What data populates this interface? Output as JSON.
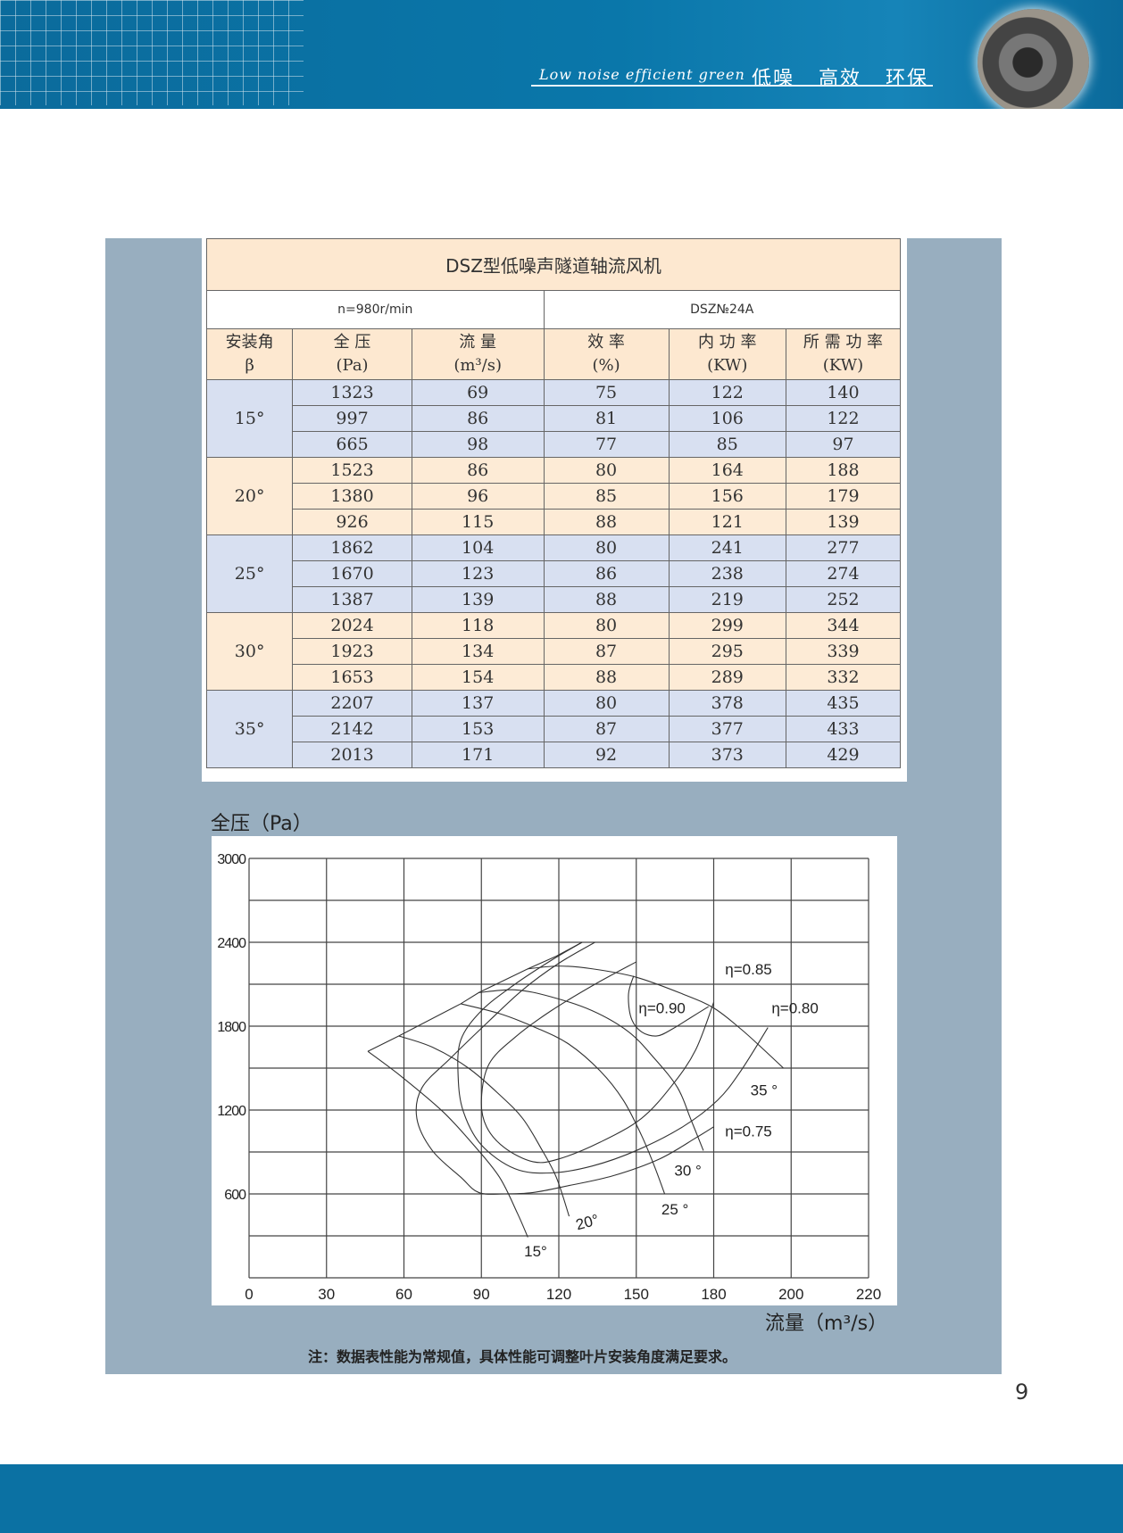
{
  "header": {
    "slogan_en": "Low noise efficient green",
    "slogan_cn": "低噪 高效 环保",
    "brand_color": "#0b71a3"
  },
  "table": {
    "title": "DSZ型低噪声隧道轴流风机",
    "speed": "n=980r/min",
    "model": "DSZ№24A",
    "headers": [
      {
        "label": "安装角",
        "unit": "β"
      },
      {
        "label": "全 压",
        "unit": "(Pa)"
      },
      {
        "label": "流 量",
        "unit": "(m³/s)"
      },
      {
        "label": "效 率",
        "unit": "(%)"
      },
      {
        "label": "内 功 率",
        "unit": "(KW)"
      },
      {
        "label": "所 需 功 率",
        "unit": "(KW)"
      }
    ],
    "groups": [
      {
        "angle": "15°",
        "rows": [
          [
            "1323",
            "69",
            "75",
            "122",
            "140"
          ],
          [
            "997",
            "86",
            "81",
            "106",
            "122"
          ],
          [
            "665",
            "98",
            "77",
            "85",
            "97"
          ]
        ]
      },
      {
        "angle": "20°",
        "rows": [
          [
            "1523",
            "86",
            "80",
            "164",
            "188"
          ],
          [
            "1380",
            "96",
            "85",
            "156",
            "179"
          ],
          [
            "926",
            "115",
            "88",
            "121",
            "139"
          ]
        ]
      },
      {
        "angle": "25°",
        "rows": [
          [
            "1862",
            "104",
            "80",
            "241",
            "277"
          ],
          [
            "1670",
            "123",
            "86",
            "238",
            "274"
          ],
          [
            "1387",
            "139",
            "88",
            "219",
            "252"
          ]
        ]
      },
      {
        "angle": "30°",
        "rows": [
          [
            "2024",
            "118",
            "80",
            "299",
            "344"
          ],
          [
            "1923",
            "134",
            "87",
            "295",
            "339"
          ],
          [
            "1653",
            "154",
            "88",
            "289",
            "332"
          ]
        ]
      },
      {
        "angle": "35°",
        "rows": [
          [
            "2207",
            "137",
            "80",
            "378",
            "435"
          ],
          [
            "2142",
            "153",
            "87",
            "377",
            "433"
          ],
          [
            "2013",
            "171",
            "92",
            "373",
            "429"
          ]
        ]
      }
    ]
  },
  "chart_data": {
    "type": "line",
    "ylabel": "全压（Pa）",
    "xlabel": "流量（m³/s）",
    "x_ticks": [
      0,
      30,
      60,
      90,
      120,
      150,
      180,
      200,
      220
    ],
    "y_ticks": [
      0,
      600,
      1200,
      1800,
      2400,
      3000
    ],
    "y_grid_step": 300,
    "ylim": [
      0,
      3000
    ],
    "grid": true,
    "series": [
      {
        "name": "15°",
        "points": [
          [
            46,
            1620
          ],
          [
            59,
            1440
          ],
          [
            75,
            1190
          ],
          [
            87,
            950
          ],
          [
            97,
            720
          ],
          [
            104,
            460
          ],
          [
            108,
            290
          ]
        ]
      },
      {
        "name": "20°",
        "points": [
          [
            58,
            1730
          ],
          [
            71,
            1650
          ],
          [
            85,
            1500
          ],
          [
            97,
            1310
          ],
          [
            106,
            1140
          ],
          [
            113,
            930
          ],
          [
            119,
            720
          ],
          [
            124,
            440
          ]
        ]
      },
      {
        "name": "25°",
        "points": [
          [
            82,
            1960
          ],
          [
            97,
            1890
          ],
          [
            111,
            1790
          ],
          [
            124,
            1670
          ],
          [
            136,
            1480
          ],
          [
            145,
            1270
          ],
          [
            152,
            1020
          ],
          [
            157,
            800
          ],
          [
            161,
            600
          ]
        ]
      },
      {
        "name": "30°",
        "points": [
          [
            89,
            2040
          ],
          [
            103,
            2060
          ],
          [
            117,
            2010
          ],
          [
            133,
            1910
          ],
          [
            147,
            1760
          ],
          [
            157,
            1570
          ],
          [
            166,
            1360
          ],
          [
            171,
            1140
          ],
          [
            176,
            910
          ]
        ]
      },
      {
        "name": "35°",
        "points": [
          [
            108,
            2210
          ],
          [
            120,
            2230
          ],
          [
            133,
            2210
          ],
          [
            150,
            2150
          ],
          [
            168,
            2030
          ],
          [
            180,
            1930
          ],
          [
            187,
            1780
          ],
          [
            193,
            1630
          ],
          [
            198,
            1500
          ]
        ]
      },
      {
        "name": "",
        "points": [
          [
            46,
            1620
          ],
          [
            58,
            1730
          ],
          [
            82,
            1960
          ],
          [
            89,
            2040
          ],
          [
            108,
            2210
          ],
          [
            119,
            2300
          ],
          [
            129,
            2400
          ]
        ]
      },
      {
        "name": "η=0.75",
        "points": [
          [
            134,
            2400
          ],
          [
            120,
            2250
          ],
          [
            106,
            2060
          ],
          [
            92,
            1820
          ],
          [
            78,
            1570
          ],
          [
            67,
            1360
          ],
          [
            65,
            1140
          ],
          [
            71,
            910
          ],
          [
            82,
            720
          ],
          [
            89,
            610
          ],
          [
            99,
            600
          ],
          [
            110,
            610
          ],
          [
            124,
            660
          ],
          [
            141,
            730
          ],
          [
            159,
            850
          ],
          [
            173,
            1000
          ],
          [
            180,
            1080
          ]
        ]
      },
      {
        "name": "η=0.80",
        "points": [
          [
            129,
            2400
          ],
          [
            117,
            2270
          ],
          [
            103,
            2100
          ],
          [
            90,
            1910
          ],
          [
            82,
            1700
          ],
          [
            81,
            1440
          ],
          [
            83,
            1190
          ],
          [
            90,
            950
          ],
          [
            103,
            780
          ],
          [
            117,
            750
          ],
          [
            133,
            800
          ],
          [
            150,
            910
          ],
          [
            168,
            1080
          ],
          [
            181,
            1270
          ],
          [
            187,
            1480
          ],
          [
            194,
            1790
          ]
        ]
      },
      {
        "name": "η=0.85",
        "points": [
          [
            150,
            2260
          ],
          [
            134,
            2100
          ],
          [
            117,
            1910
          ],
          [
            103,
            1720
          ],
          [
            93,
            1530
          ],
          [
            90,
            1270
          ],
          [
            92,
            1080
          ],
          [
            99,
            930
          ],
          [
            110,
            830
          ],
          [
            120,
            850
          ],
          [
            136,
            970
          ],
          [
            152,
            1140
          ],
          [
            164,
            1380
          ],
          [
            173,
            1630
          ],
          [
            180,
            1970
          ]
        ]
      },
      {
        "name": "η=0.90",
        "points": [
          [
            149,
            2160
          ],
          [
            147,
            2030
          ],
          [
            148,
            1860
          ],
          [
            152,
            1760
          ],
          [
            158,
            1730
          ],
          [
            164,
            1780
          ],
          [
            171,
            1860
          ],
          [
            178,
            1940
          ]
        ]
      }
    ],
    "annotations": [
      {
        "text": "η=0.85",
        "x": 189,
        "y": 2210
      },
      {
        "text": "η=0.90",
        "x": 160,
        "y": 1930
      },
      {
        "text": "η=0.80",
        "x": 201,
        "y": 1930
      },
      {
        "text": "35 °",
        "x": 193,
        "y": 1345
      },
      {
        "text": "η=0.75",
        "x": 189,
        "y": 1050
      },
      {
        "text": "30 °",
        "x": 170,
        "y": 770
      },
      {
        "text": "25 °",
        "x": 165,
        "y": 490
      },
      {
        "text": "20°",
        "x": 131,
        "y": 400
      },
      {
        "text": "15°",
        "x": 111,
        "y": 190
      }
    ]
  },
  "note": "注：数据表性能为常规值，具体性能可调整叶片安装角度满足要求。",
  "page_number": "9"
}
